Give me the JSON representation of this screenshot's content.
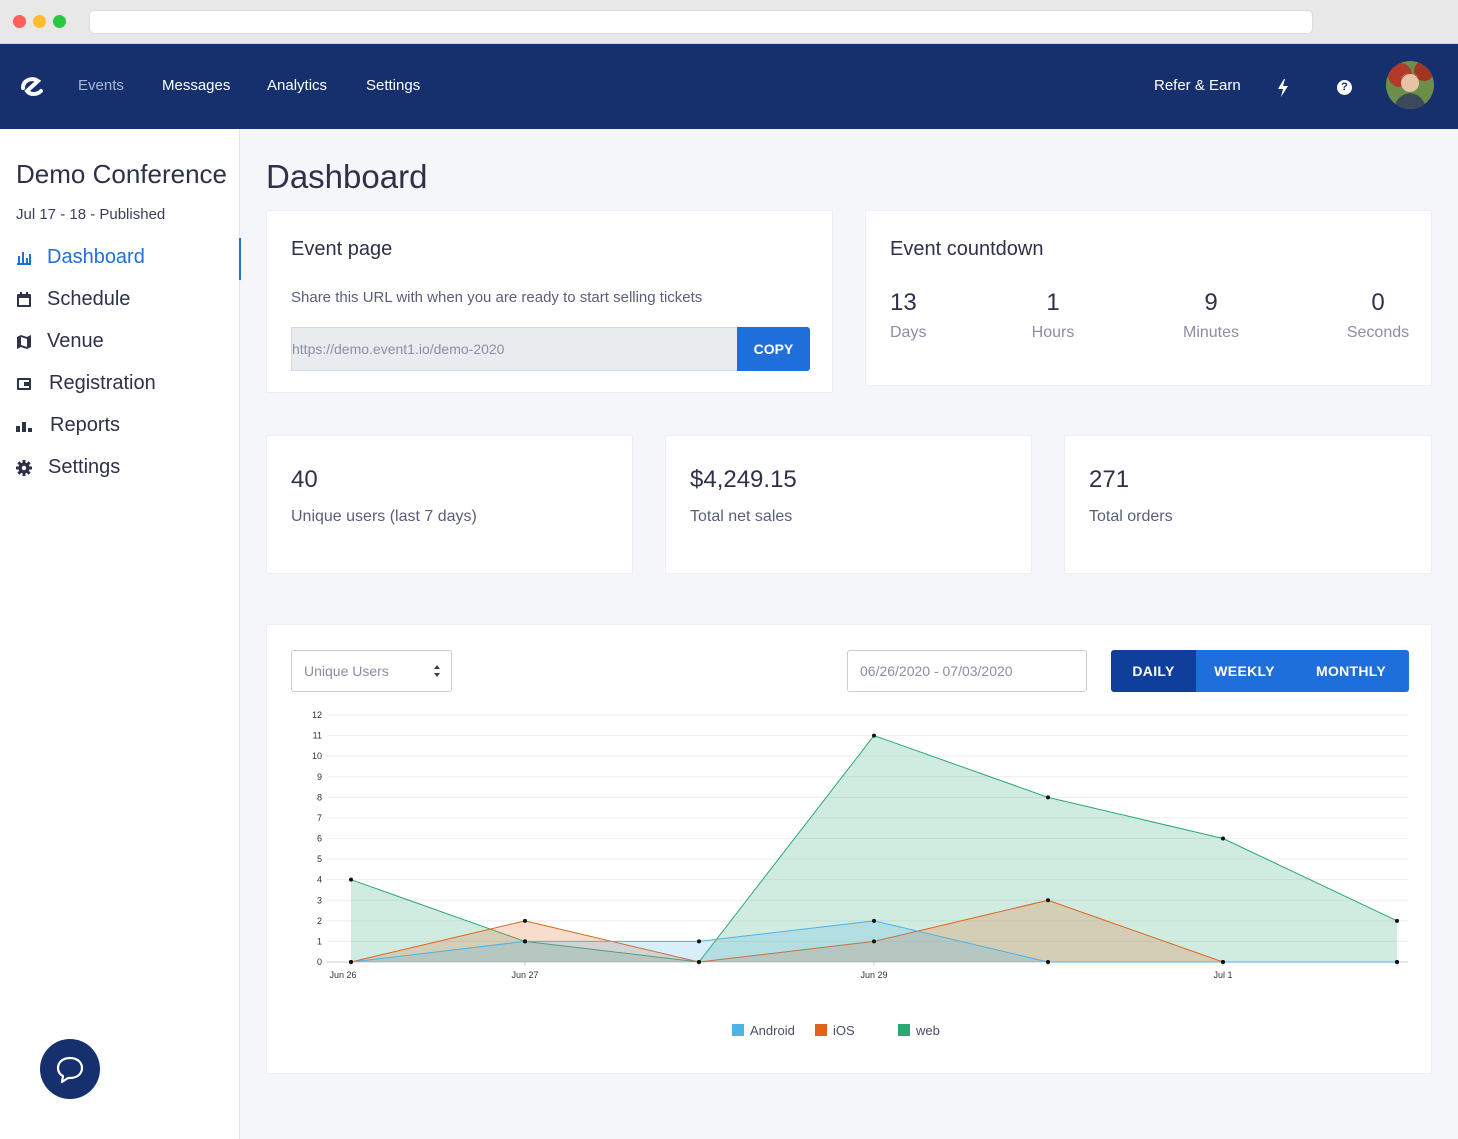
{
  "topnav": {
    "links": [
      "Events",
      "Messages",
      "Analytics",
      "Settings"
    ],
    "refer": "Refer & Earn",
    "help_glyph": "?"
  },
  "sidebar": {
    "event_name": "Demo Conference",
    "event_meta": "Jul 17 - 18 - Published",
    "items": [
      {
        "label": "Dashboard",
        "icon": "bar-chart-icon"
      },
      {
        "label": "Schedule",
        "icon": "calendar-icon"
      },
      {
        "label": "Venue",
        "icon": "map-icon"
      },
      {
        "label": "Registration",
        "icon": "wallet-icon"
      },
      {
        "label": "Reports",
        "icon": "reports-icon"
      },
      {
        "label": "Settings",
        "icon": "gear-icon"
      }
    ]
  },
  "main": {
    "title": "Dashboard",
    "event_page": {
      "title": "Event page",
      "description": "Share this URL with when you are ready to start selling tickets",
      "url": "https://demo.event1.io/demo-2020",
      "copy_label": "COPY"
    },
    "countdown": {
      "title": "Event countdown",
      "units": [
        {
          "value": "13",
          "label": "Days"
        },
        {
          "value": "1",
          "label": "Hours"
        },
        {
          "value": "9",
          "label": "Minutes"
        },
        {
          "value": "0",
          "label": "Seconds"
        }
      ]
    },
    "stats": [
      {
        "value": "40",
        "label": "Unique users (last 7 days)"
      },
      {
        "value": "$4,249.15",
        "label": "Total net sales"
      },
      {
        "value": "271",
        "label": "Total orders"
      }
    ],
    "chart_controls": {
      "metric_select": "Unique Users",
      "date_range": "06/26/2020 - 07/03/2020",
      "periods": [
        "DAILY",
        "WEEKLY",
        "MONTHLY"
      ],
      "active_period": "DAILY"
    }
  },
  "colors": {
    "nav_bg": "#16306e",
    "accent": "#1f6fdb",
    "android": "#4db3e6",
    "ios": "#e0621b",
    "web": "#2aa872"
  },
  "chart_data": {
    "type": "area",
    "x": [
      "Jun 26",
      "Jun 27",
      "Jun 28",
      "Jun 29",
      "Jun 30",
      "Jul 1",
      "Jul 2"
    ],
    "x_tick_labels": [
      "Jun 26",
      "Jun 27",
      "Jun 29",
      "Jul 1"
    ],
    "ylim": [
      0,
      12
    ],
    "yticks": [
      0,
      1,
      2,
      3,
      4,
      5,
      6,
      7,
      8,
      9,
      10,
      11,
      12
    ],
    "grid": true,
    "legend_position": "bottom",
    "series": [
      {
        "name": "Android",
        "color": "#4db3e6",
        "values": [
          0,
          1,
          1,
          2,
          0,
          0,
          0
        ]
      },
      {
        "name": "iOS",
        "color": "#e0621b",
        "values": [
          0,
          2,
          0,
          1,
          3,
          0,
          0
        ]
      },
      {
        "name": "web",
        "color": "#2aa872",
        "values": [
          4,
          1,
          0,
          11,
          8,
          6,
          2
        ]
      }
    ]
  }
}
